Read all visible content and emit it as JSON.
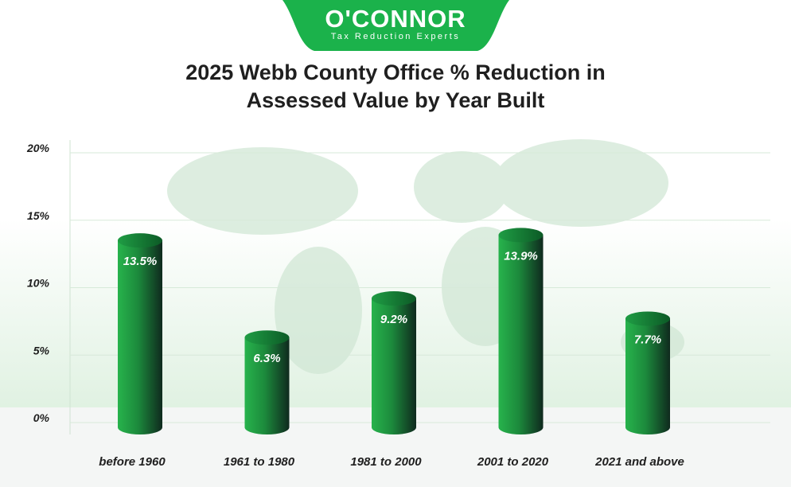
{
  "brand": {
    "name": "O'CONNOR",
    "tagline": "Tax Reduction Experts"
  },
  "colors": {
    "brand_green": "#1bb24b",
    "bar_light": "#25b14a",
    "bar_dark": "#0f2a1e",
    "grid": "#d7ead9",
    "label": "#1f1f1f"
  },
  "chart_data": {
    "type": "bar",
    "title_lines": [
      "2025 Webb County Office % Reduction in",
      "Assessed Value by Year Built"
    ],
    "categories": [
      "before 1960",
      "1961 to 1980",
      "1981 to 2000",
      "2001 to 2020",
      "2021 and above"
    ],
    "values": [
      13.5,
      6.3,
      9.2,
      13.9,
      7.7
    ],
    "value_labels": [
      "13.5%",
      "6.3%",
      "9.2%",
      "13.9%",
      "7.7%"
    ],
    "yticks": [
      "0%",
      "5%",
      "10%",
      "15%",
      "20%"
    ],
    "ytick_values": [
      0,
      5,
      10,
      15,
      20
    ],
    "ylim": [
      0,
      20
    ],
    "grid": true,
    "xlabel": "",
    "ylabel": ""
  }
}
